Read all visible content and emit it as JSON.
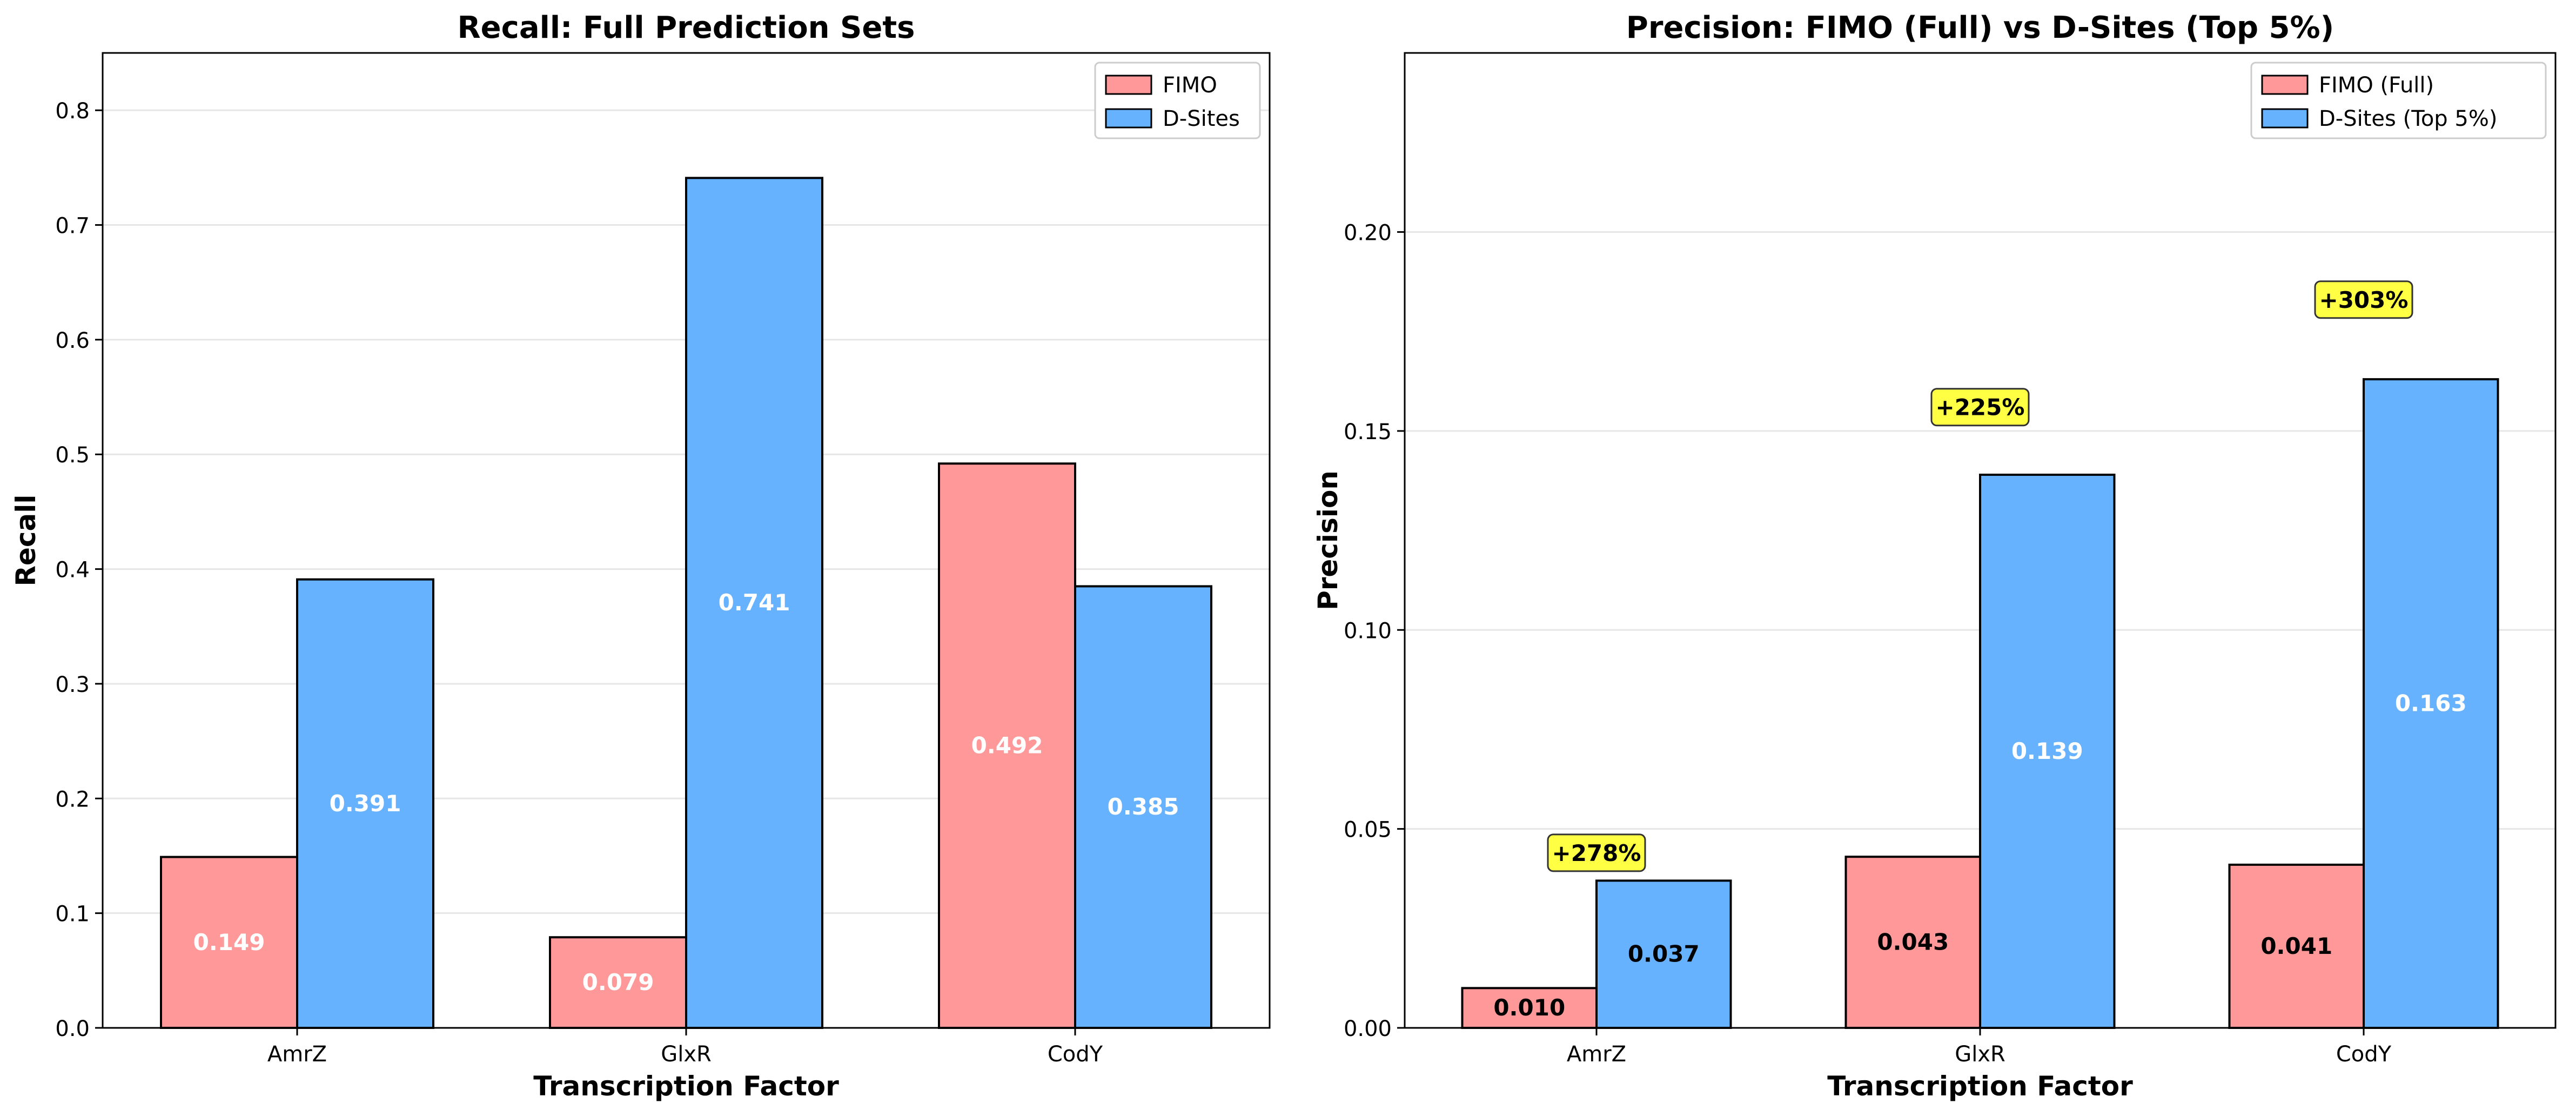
{
  "chart_data": [
    {
      "type": "bar",
      "title": "Recall: Full Prediction Sets",
      "xlabel": "Transcription Factor",
      "ylabel": "Recall",
      "categories": [
        "AmrZ",
        "GlxR",
        "CodY"
      ],
      "series": [
        {
          "name": "FIMO",
          "values": [
            0.149,
            0.079,
            0.492
          ],
          "color": "#ff9999",
          "labels": [
            "0.149",
            "0.079",
            "0.492"
          ]
        },
        {
          "name": "D-Sites",
          "values": [
            0.391,
            0.741,
            0.385
          ],
          "color": "#66b2ff",
          "labels": [
            "0.391",
            "0.741",
            "0.385"
          ]
        }
      ],
      "ylim": [
        0,
        0.85
      ],
      "yticks": [
        0.0,
        0.1,
        0.2,
        0.3,
        0.4,
        0.5,
        0.6,
        0.7,
        0.8
      ],
      "ytick_labels": [
        "0.0",
        "0.1",
        "0.2",
        "0.3",
        "0.4",
        "0.5",
        "0.6",
        "0.7",
        "0.8"
      ],
      "grid": "horizontal",
      "legend": "top-right",
      "value_label_color": "#ffffff"
    },
    {
      "type": "bar",
      "title": "Precision: FIMO (Full) vs D-Sites (Top 5%)",
      "xlabel": "Transcription Factor",
      "ylabel": "Precision",
      "categories": [
        "AmrZ",
        "GlxR",
        "CodY"
      ],
      "series": [
        {
          "name": "FIMO (Full)",
          "values": [
            0.01,
            0.043,
            0.041
          ],
          "color": "#ff9999",
          "labels": [
            "0.010",
            "0.043",
            "0.041"
          ],
          "label_colors": [
            "#000000",
            "#000000",
            "#000000"
          ]
        },
        {
          "name": "D-Sites (Top 5%)",
          "values": [
            0.037,
            0.139,
            0.163
          ],
          "color": "#66b2ff",
          "labels": [
            "0.037",
            "0.139",
            "0.163"
          ],
          "label_colors": [
            "#000000",
            "#ffffff",
            "#ffffff"
          ]
        }
      ],
      "ylim": [
        0,
        0.245
      ],
      "yticks": [
        0.0,
        0.05,
        0.1,
        0.15,
        0.2
      ],
      "ytick_labels": [
        "0.00",
        "0.05",
        "0.10",
        "0.15",
        "0.20"
      ],
      "grid": "horizontal",
      "legend": "top-right",
      "annotations": [
        {
          "text": "+278%",
          "category": "AmrZ",
          "y": 0.044
        },
        {
          "text": "+225%",
          "category": "GlxR",
          "y": 0.156
        },
        {
          "text": "+303%",
          "category": "CodY",
          "y": 0.183
        }
      ],
      "annotation_color": "#ffff44"
    }
  ]
}
